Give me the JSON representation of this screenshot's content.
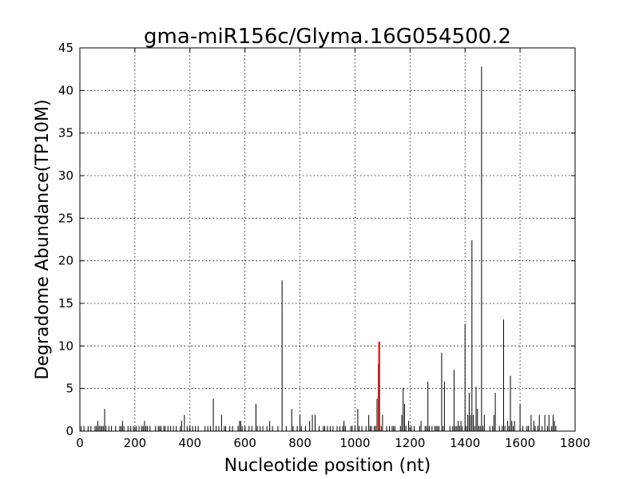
{
  "chart_data": {
    "type": "bar",
    "title": "gma-miR156c/Glyma.16G054500.2",
    "xlabel": "Nucleotide position (nt)",
    "ylabel": "Degradome Abundance(TP10M)",
    "xlim": [
      0,
      1800
    ],
    "ylim": [
      0,
      45
    ],
    "xticks": [
      0,
      200,
      400,
      600,
      800,
      1000,
      1200,
      1400,
      1600,
      1800
    ],
    "yticks": [
      0,
      5,
      10,
      15,
      20,
      25,
      30,
      35,
      40,
      45
    ],
    "grid": true,
    "bar_color": "#000000",
    "highlight_color": "#ff0000",
    "series": [
      {
        "color": "#000000",
        "points": [
          [
            5,
            0.6
          ],
          [
            15,
            0.6
          ],
          [
            30,
            0.6
          ],
          [
            40,
            0.6
          ],
          [
            55,
            0.6
          ],
          [
            60,
            0.6
          ],
          [
            65,
            1.2
          ],
          [
            70,
            0.6
          ],
          [
            75,
            0.6
          ],
          [
            80,
            0.6
          ],
          [
            85,
            0.6
          ],
          [
            90,
            2.6
          ],
          [
            95,
            0.6
          ],
          [
            105,
            0.6
          ],
          [
            115,
            0.6
          ],
          [
            130,
            0.6
          ],
          [
            145,
            0.6
          ],
          [
            150,
            0.6
          ],
          [
            155,
            1.2
          ],
          [
            160,
            0.6
          ],
          [
            175,
            0.6
          ],
          [
            185,
            0.6
          ],
          [
            195,
            0.6
          ],
          [
            205,
            0.6
          ],
          [
            215,
            0.6
          ],
          [
            225,
            0.6
          ],
          [
            230,
            0.6
          ],
          [
            235,
            1.2
          ],
          [
            240,
            0.6
          ],
          [
            245,
            0.6
          ],
          [
            255,
            0.6
          ],
          [
            275,
            0.6
          ],
          [
            285,
            0.6
          ],
          [
            290,
            0.6
          ],
          [
            295,
            0.6
          ],
          [
            305,
            0.6
          ],
          [
            310,
            0.6
          ],
          [
            320,
            0.6
          ],
          [
            330,
            0.6
          ],
          [
            340,
            0.6
          ],
          [
            350,
            0.6
          ],
          [
            365,
            0.6
          ],
          [
            370,
            1.2
          ],
          [
            380,
            1.9
          ],
          [
            390,
            0.6
          ],
          [
            400,
            0.6
          ],
          [
            410,
            0.6
          ],
          [
            420,
            0.6
          ],
          [
            430,
            0.6
          ],
          [
            455,
            0.6
          ],
          [
            465,
            0.6
          ],
          [
            475,
            0.6
          ],
          [
            485,
            3.8
          ],
          [
            495,
            0.6
          ],
          [
            505,
            0.6
          ],
          [
            515,
            1.9
          ],
          [
            525,
            0.6
          ],
          [
            530,
            0.6
          ],
          [
            545,
            0.6
          ],
          [
            555,
            0.6
          ],
          [
            575,
            0.6
          ],
          [
            580,
            1.2
          ],
          [
            585,
            1.2
          ],
          [
            590,
            0.6
          ],
          [
            600,
            0.6
          ],
          [
            615,
            0.6
          ],
          [
            625,
            0.6
          ],
          [
            640,
            3.2
          ],
          [
            645,
            0.6
          ],
          [
            655,
            0.6
          ],
          [
            665,
            0.6
          ],
          [
            680,
            0.6
          ],
          [
            690,
            1.2
          ],
          [
            700,
            0.6
          ],
          [
            720,
            0.6
          ],
          [
            735,
            17.7
          ],
          [
            750,
            0.6
          ],
          [
            770,
            2.6
          ],
          [
            775,
            0.6
          ],
          [
            790,
            0.6
          ],
          [
            800,
            1.9
          ],
          [
            805,
            0.6
          ],
          [
            820,
            0.6
          ],
          [
            835,
            1.2
          ],
          [
            845,
            1.9
          ],
          [
            855,
            1.9
          ],
          [
            870,
            0.6
          ],
          [
            885,
            0.6
          ],
          [
            890,
            0.6
          ],
          [
            900,
            0.6
          ],
          [
            910,
            0.6
          ],
          [
            920,
            0.6
          ],
          [
            935,
            0.6
          ],
          [
            945,
            0.6
          ],
          [
            955,
            0.6
          ],
          [
            960,
            1.2
          ],
          [
            965,
            0.6
          ],
          [
            985,
            0.6
          ],
          [
            990,
            0.6
          ],
          [
            1000,
            0.6
          ],
          [
            1010,
            2.6
          ],
          [
            1015,
            0.6
          ],
          [
            1025,
            0.6
          ],
          [
            1040,
            0.6
          ],
          [
            1050,
            1.9
          ],
          [
            1055,
            0.6
          ],
          [
            1060,
            0.6
          ],
          [
            1070,
            0.6
          ],
          [
            1075,
            0.6
          ],
          [
            1080,
            3.8
          ],
          [
            1085,
            7.9
          ],
          [
            1095,
            0.6
          ],
          [
            1100,
            1.9
          ],
          [
            1115,
            0.6
          ],
          [
            1125,
            0.6
          ],
          [
            1135,
            0.6
          ],
          [
            1140,
            0.6
          ],
          [
            1145,
            0.6
          ],
          [
            1165,
            0.6
          ],
          [
            1170,
            1.9
          ],
          [
            1175,
            5.1
          ],
          [
            1180,
            3.2
          ],
          [
            1185,
            0.6
          ],
          [
            1195,
            1.2
          ],
          [
            1205,
            0.6
          ],
          [
            1215,
            0.6
          ],
          [
            1235,
            0.6
          ],
          [
            1240,
            1.2
          ],
          [
            1255,
            0.6
          ],
          [
            1260,
            0.6
          ],
          [
            1265,
            5.8
          ],
          [
            1270,
            0.6
          ],
          [
            1280,
            0.6
          ],
          [
            1290,
            0.6
          ],
          [
            1295,
            0.6
          ],
          [
            1300,
            0.6
          ],
          [
            1305,
            0.6
          ],
          [
            1315,
            9.2
          ],
          [
            1320,
            0.6
          ],
          [
            1325,
            5.8
          ],
          [
            1345,
            0.6
          ],
          [
            1355,
            0.6
          ],
          [
            1360,
            7.2
          ],
          [
            1365,
            0.6
          ],
          [
            1370,
            0.6
          ],
          [
            1375,
            1.2
          ],
          [
            1380,
            0.6
          ],
          [
            1385,
            1.2
          ],
          [
            1390,
            0.6
          ],
          [
            1400,
            12.6
          ],
          [
            1405,
            0.6
          ],
          [
            1410,
            1.9
          ],
          [
            1415,
            4.5
          ],
          [
            1420,
            1.9
          ],
          [
            1425,
            22.4
          ],
          [
            1430,
            1.9
          ],
          [
            1435,
            0.6
          ],
          [
            1440,
            5.2
          ],
          [
            1445,
            2.6
          ],
          [
            1450,
            0.6
          ],
          [
            1455,
            0.6
          ],
          [
            1460,
            42.8
          ],
          [
            1465,
            0.6
          ],
          [
            1470,
            1.9
          ],
          [
            1490,
            0.6
          ],
          [
            1500,
            0.6
          ],
          [
            1505,
            1.9
          ],
          [
            1510,
            4.5
          ],
          [
            1525,
            0.6
          ],
          [
            1535,
            0.6
          ],
          [
            1540,
            13.1
          ],
          [
            1545,
            0.6
          ],
          [
            1555,
            1.2
          ],
          [
            1560,
            0.6
          ],
          [
            1565,
            6.5
          ],
          [
            1570,
            1.2
          ],
          [
            1575,
            0.6
          ],
          [
            1580,
            1.2
          ],
          [
            1600,
            3.2
          ],
          [
            1610,
            0.6
          ],
          [
            1625,
            0.6
          ],
          [
            1630,
            0.6
          ],
          [
            1640,
            1.9
          ],
          [
            1650,
            1.2
          ],
          [
            1655,
            0.6
          ],
          [
            1665,
            0.6
          ],
          [
            1670,
            1.9
          ],
          [
            1680,
            0.6
          ],
          [
            1690,
            1.9
          ],
          [
            1700,
            0.6
          ],
          [
            1705,
            1.9
          ],
          [
            1715,
            0.6
          ],
          [
            1720,
            1.9
          ],
          [
            1725,
            1.2
          ],
          [
            1730,
            0.6
          ]
        ]
      },
      {
        "color": "#ff0000",
        "points": [
          [
            1088,
            10.5
          ]
        ]
      }
    ]
  }
}
